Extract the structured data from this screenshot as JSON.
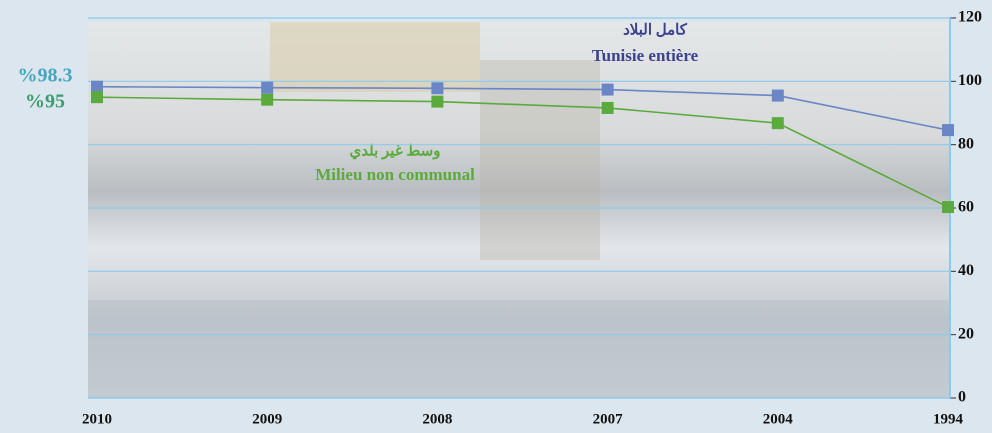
{
  "chart_data": {
    "type": "line",
    "categories": [
      "2010",
      "2009",
      "2008",
      "2007",
      "2004",
      "1994"
    ],
    "series": [
      {
        "name": "Tunisie entière",
        "name_ar": "كامل البلاد",
        "color": "#6b86c6",
        "label_color": "#3d428f",
        "values": [
          98.3,
          98,
          97.8,
          97.4,
          95.5,
          84.6
        ],
        "start_label": "%98.3",
        "start_label_color": "#45a6c2"
      },
      {
        "name": "Milieu non communal",
        "name_ar": "وسط غير بلدي",
        "color": "#5aab3c",
        "label_color": "#5aab3c",
        "values": [
          95,
          94.2,
          93.6,
          91.6,
          86.8,
          60.3
        ],
        "start_label": "%95",
        "start_label_color": "#3c9c6c"
      }
    ],
    "ylim": [
      0,
      120
    ],
    "yticks": [
      0,
      20,
      40,
      60,
      80,
      100,
      120
    ],
    "grid": true
  }
}
